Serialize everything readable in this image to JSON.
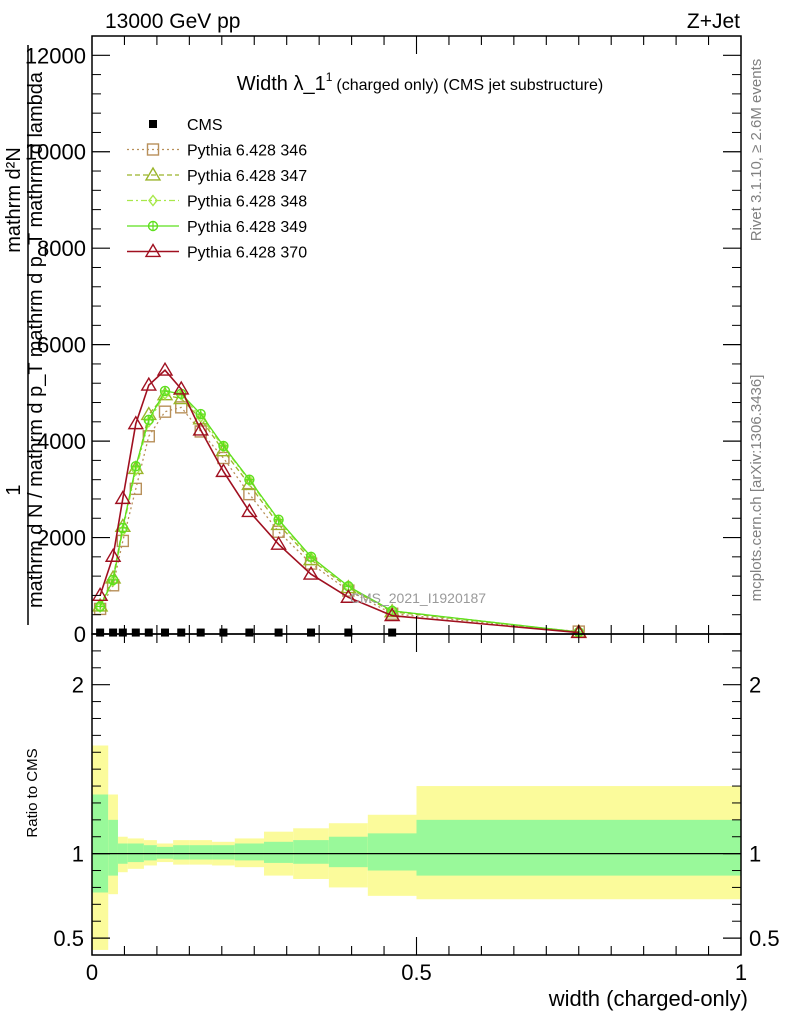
{
  "header": {
    "left": "13000 GeV pp",
    "right": "Z+Jet"
  },
  "title": {
    "main": "Width λ_1",
    "sup": "1",
    "sub": "(charged only) (CMS jet substructure)"
  },
  "side_labels": {
    "rivet": "Rivet 3.1.10, ≥ 2.6M events",
    "mcplots": "mcplots.cern.ch [arXiv:1306.3436]"
  },
  "watermark": "CMS_2021_I1920187",
  "colors": {
    "cms": "#000000",
    "p346": "#b8905a",
    "p347": "#9ab52a",
    "p348": "#a8e84a",
    "p349": "#5ee01e",
    "p370": "#a01020",
    "band_inner": "#99f99a",
    "band_outer": "#fbfb9b"
  },
  "chart_data": [
    {
      "type": "line",
      "panel": "main",
      "ylabel_parts": [
        "1",
        "mathrm d N / mathrm d p_T mathrm d p_T mathrm d lambda",
        "mathrm d²N"
      ],
      "xlim": [
        0,
        1
      ],
      "ylim": [
        0,
        12400
      ],
      "y_ticks": [
        0,
        2000,
        4000,
        6000,
        8000,
        10000,
        12000
      ],
      "y_tick_labels": [
        "0",
        "2000",
        "4000",
        "6000",
        "8000",
        "10000",
        "12000"
      ],
      "legend_position": "top-left",
      "x": [
        0.0125,
        0.0325,
        0.0475,
        0.0675,
        0.0875,
        0.1125,
        0.1375,
        0.1675,
        0.2025,
        0.2425,
        0.2875,
        0.3375,
        0.395,
        0.4625,
        0.75
      ],
      "series": [
        {
          "name": "CMS",
          "marker": "square",
          "values": [
            30,
            30,
            30,
            30,
            30,
            30,
            30,
            30,
            30,
            30,
            30,
            30,
            30,
            30,
            null
          ]
        },
        {
          "name": "Pythia 6.428 346",
          "marker": "open-square",
          "dash": "dotted",
          "values": [
            520,
            1010,
            1930,
            3010,
            4100,
            4610,
            4700,
            4200,
            3650,
            2900,
            2120,
            1460,
            900,
            420,
            50
          ]
        },
        {
          "name": "Pythia 6.428 347",
          "marker": "open-triangle",
          "dash": "dashed",
          "values": [
            580,
            1160,
            2230,
            3430,
            4550,
            4960,
            4880,
            4460,
            3800,
            3100,
            2270,
            1540,
            960,
            460,
            40
          ]
        },
        {
          "name": "Pythia 6.428 348",
          "marker": "open-diamond",
          "dash": "dashdot",
          "values": [
            560,
            1100,
            2150,
            3400,
            4400,
            4980,
            4960,
            4500,
            3880,
            3180,
            2340,
            1580,
            980,
            480,
            40
          ]
        },
        {
          "name": "Pythia 6.428 349",
          "marker": "open-circle-cross",
          "dash": "solid",
          "values": [
            570,
            1120,
            2200,
            3480,
            4440,
            5040,
            4980,
            4560,
            3900,
            3200,
            2370,
            1600,
            990,
            480,
            40
          ]
        },
        {
          "name": "Pythia 6.428 370",
          "marker": "open-triangle",
          "dash": "solid",
          "values": [
            800,
            1610,
            2810,
            4360,
            5160,
            5470,
            5080,
            4230,
            3370,
            2540,
            1860,
            1240,
            760,
            380,
            30
          ]
        }
      ]
    },
    {
      "type": "area",
      "panel": "ratio",
      "ylabel": "Ratio to CMS",
      "xlabel": "width (charged-only)",
      "xlim": [
        0,
        1
      ],
      "ylim": [
        0.4,
        2.3
      ],
      "y_ticks": [
        0.5,
        1,
        2
      ],
      "y_tick_labels": [
        "0.5",
        "1",
        "2"
      ],
      "x_ticks": [
        0,
        0.5,
        1
      ],
      "x_tick_labels": [
        "0",
        "0.5",
        "1"
      ],
      "bin_edges": [
        0,
        0.025,
        0.04,
        0.055,
        0.08,
        0.1,
        0.125,
        0.15,
        0.185,
        0.22,
        0.265,
        0.31,
        0.365,
        0.425,
        0.5,
        1.0
      ],
      "inner_lo": [
        0.77,
        0.87,
        0.94,
        0.95,
        0.96,
        0.97,
        0.965,
        0.965,
        0.965,
        0.96,
        0.945,
        0.94,
        0.92,
        0.9,
        0.87
      ],
      "inner_hi": [
        1.35,
        1.2,
        1.06,
        1.06,
        1.05,
        1.04,
        1.05,
        1.05,
        1.05,
        1.06,
        1.07,
        1.08,
        1.1,
        1.12,
        1.2
      ],
      "outer_lo": [
        0.43,
        0.76,
        0.89,
        0.91,
        0.93,
        0.95,
        0.935,
        0.935,
        0.93,
        0.92,
        0.87,
        0.85,
        0.8,
        0.75,
        0.73
      ],
      "outer_hi": [
        1.64,
        1.35,
        1.1,
        1.09,
        1.08,
        1.06,
        1.08,
        1.08,
        1.07,
        1.09,
        1.13,
        1.15,
        1.18,
        1.23,
        1.4
      ]
    }
  ]
}
